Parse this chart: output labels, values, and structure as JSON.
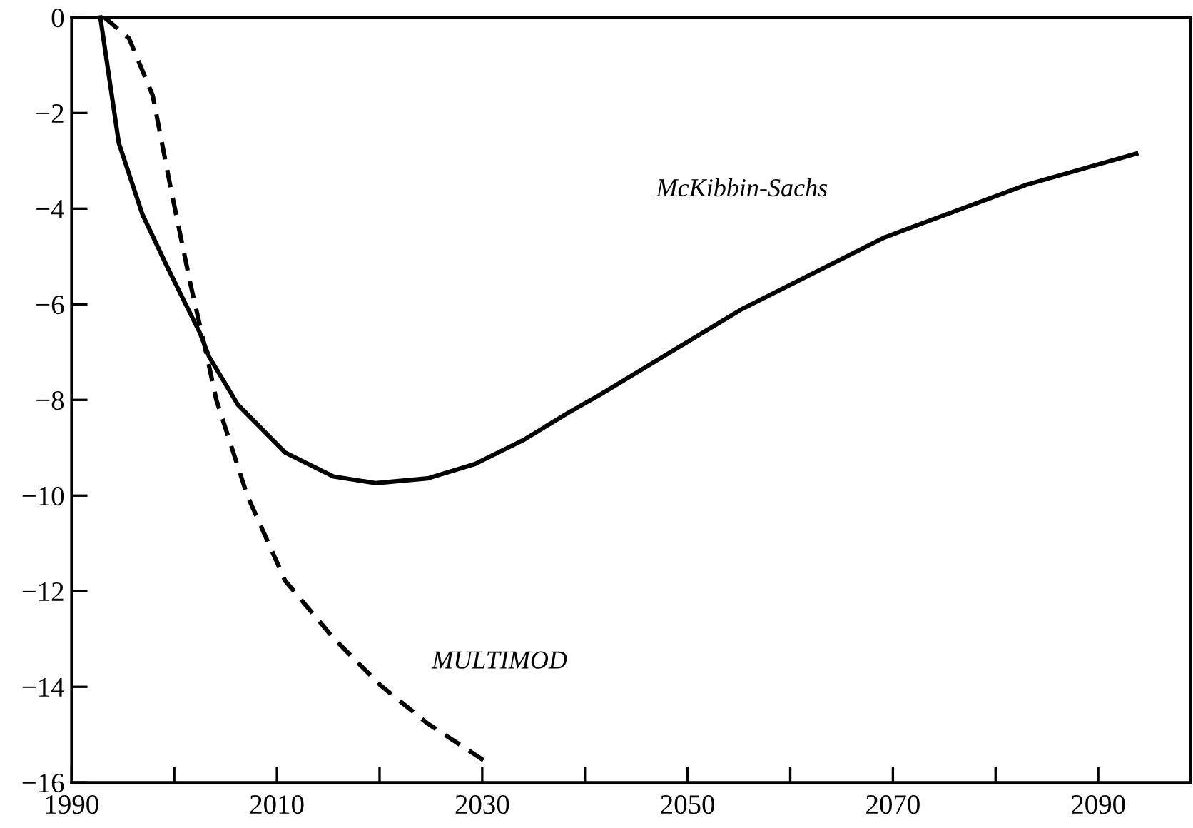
{
  "chart_data": {
    "type": "line",
    "series": [
      {
        "name": "McKibbin-Sachs",
        "color": "#000000",
        "line_style": "solid",
        "x": [
          1992.8,
          1994.6,
          1996.9,
          1999.3,
          2002.5,
          2003.4,
          2006.2,
          2010.8,
          2015.5,
          2019.6,
          2024.7,
          2029.3,
          2034,
          2038.6,
          2041.4,
          2055.3,
          2069.2,
          2083,
          2093.7
        ],
        "values": [
          0,
          -2.63,
          -4.12,
          -5.21,
          -6.6,
          -7.1,
          -8.1,
          -9.1,
          -9.6,
          -9.74,
          -9.64,
          -9.34,
          -8.84,
          -8.24,
          -7.9,
          -6.1,
          -4.6,
          -3.5,
          -2.85
        ]
      },
      {
        "name": "MULTIMOD",
        "color": "#000000",
        "line_style": "dashed",
        "x": [
          1993.2,
          1995.6,
          1997.9,
          1999.7,
          2001.6,
          2003.2,
          2004.1,
          2007.1,
          2010.8,
          2015.5,
          2020.1,
          2024.7,
          2030.3
        ],
        "values": [
          0,
          -0.44,
          -1.63,
          -3.62,
          -5.6,
          -7.1,
          -8.0,
          -9.99,
          -11.78,
          -12.98,
          -13.97,
          -14.77,
          -15.56
        ]
      }
    ],
    "xlim": [
      1990,
      2099
    ],
    "xticks": [
      1990,
      {
        "value": 2000,
        "label": null
      },
      2010,
      {
        "value": 2020,
        "label": null
      },
      2030,
      {
        "value": 2040,
        "label": null
      },
      2050,
      {
        "value": 2060,
        "label": null
      },
      2070,
      {
        "value": 2080,
        "label": null
      },
      2090
    ],
    "ylim": [
      -16,
      0
    ],
    "yticks": [
      -16,
      -14,
      -12,
      -10,
      -8,
      -6,
      -4,
      -2,
      0
    ],
    "grid": false,
    "legend": false,
    "marker": "none"
  }
}
